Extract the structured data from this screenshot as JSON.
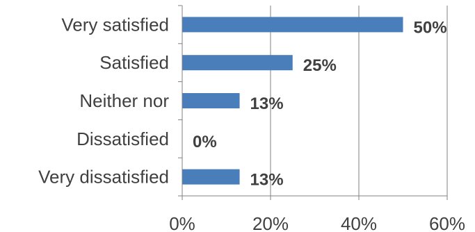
{
  "chart_data": {
    "type": "bar",
    "orientation": "horizontal",
    "title": "",
    "xlabel": "",
    "ylabel": "",
    "categories": [
      "Very satisfied",
      "Satisfied",
      "Neither nor",
      "Dissatisfied",
      "Very dissatisfied"
    ],
    "values": [
      50,
      25,
      13,
      0,
      13
    ],
    "data_labels": [
      "50%",
      "25%",
      "13%",
      "0%",
      "13%"
    ],
    "xlim": [
      0,
      60
    ],
    "xticks": [
      0,
      20,
      40,
      60
    ],
    "xtick_labels": [
      "0%",
      "20%",
      "40%",
      "60%"
    ],
    "grid": "vertical",
    "legend": "none",
    "bar_color": "#4a7ebb",
    "text_color": "#404040",
    "axis_color": "#808080"
  }
}
